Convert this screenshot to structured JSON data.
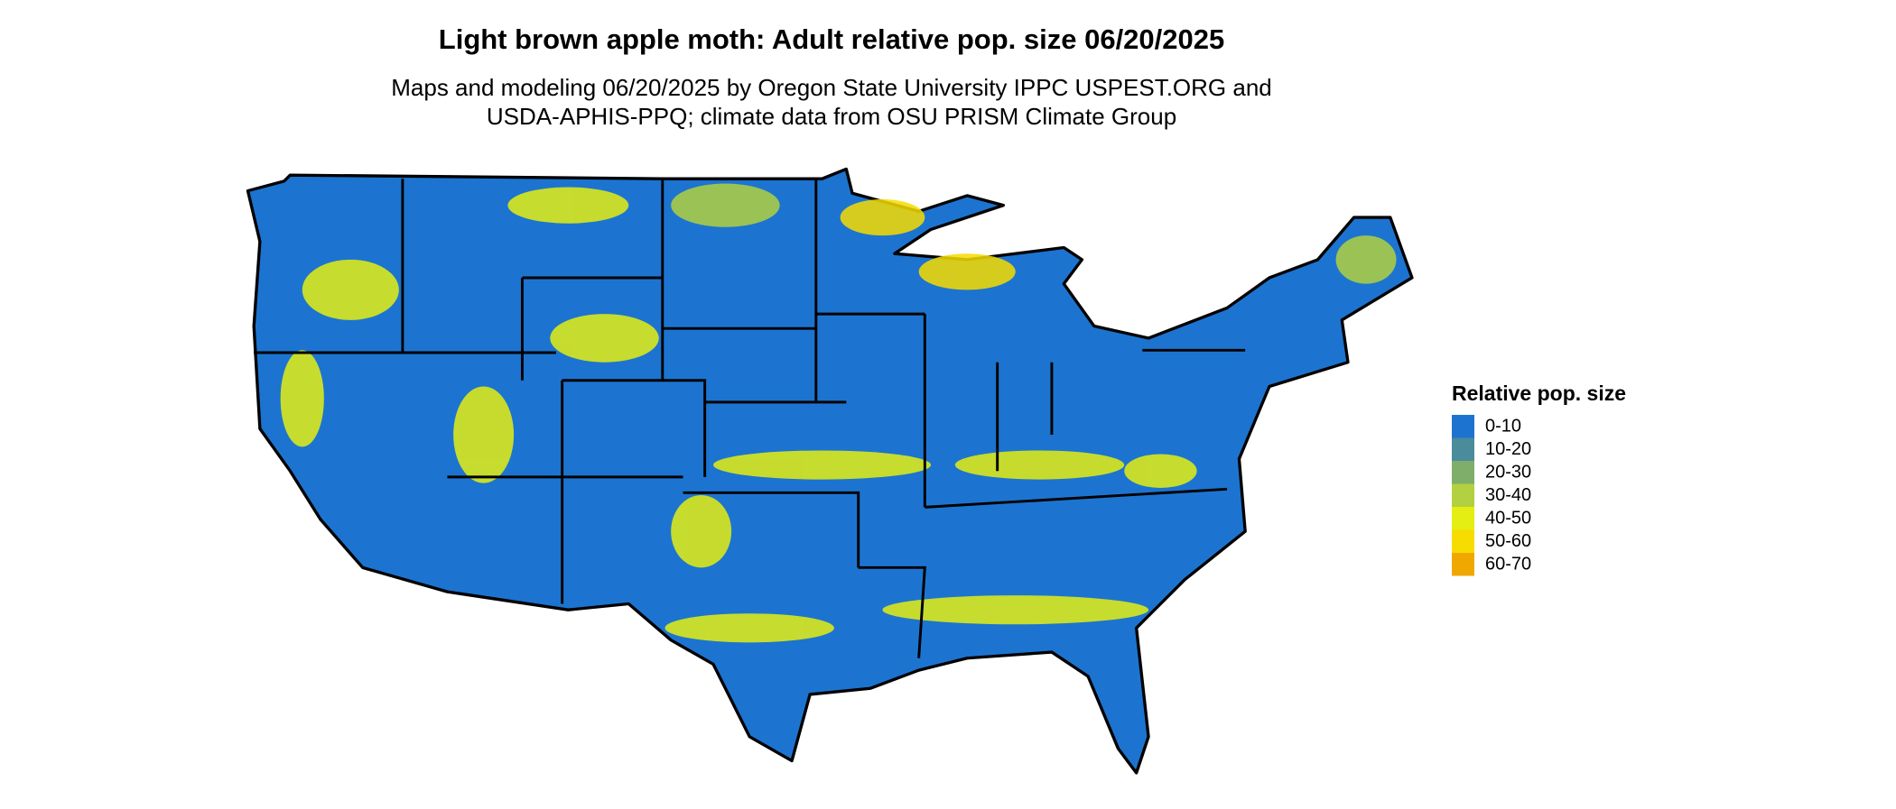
{
  "title": "Light brown apple moth: Adult relative pop. size 06/20/2025",
  "subtitle": [
    "Maps and modeling 06/20/2025 by Oregon State University IPPC USPEST.ORG and",
    "USDA-APHIS-PPQ; climate data from OSU PRISM Climate Group"
  ],
  "legend": {
    "title": "Relative pop. size",
    "items": [
      {
        "label": "0-10",
        "color": "#1c74d0"
      },
      {
        "label": "10-20",
        "color": "#4a8c9c"
      },
      {
        "label": "20-30",
        "color": "#7fae6a"
      },
      {
        "label": "30-40",
        "color": "#b2d040"
      },
      {
        "label": "40-50",
        "color": "#e4ee12"
      },
      {
        "label": "50-60",
        "color": "#f6dc00"
      },
      {
        "label": "60-70",
        "color": "#f0a800"
      }
    ]
  }
}
